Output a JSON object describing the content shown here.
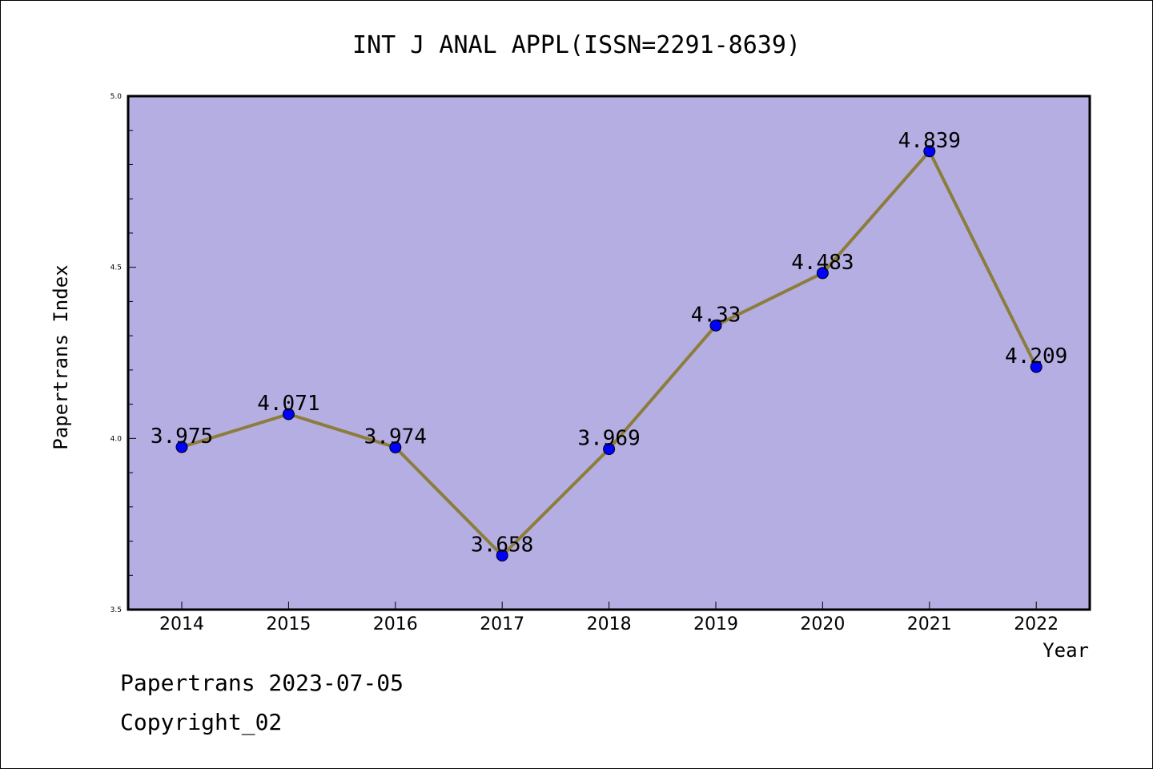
{
  "chart_data": {
    "type": "line",
    "title": "INT J ANAL APPL(ISSN=2291-8639)",
    "xlabel": "Year",
    "ylabel": "Papertrans Index",
    "categories": [
      "2014",
      "2015",
      "2016",
      "2017",
      "2018",
      "2019",
      "2020",
      "2021",
      "2022"
    ],
    "values": [
      3.975,
      4.071,
      3.974,
      3.658,
      3.969,
      4.33,
      4.483,
      4.839,
      4.209
    ],
    "data_labels": [
      "3.975",
      "4.071",
      "3.974",
      "3.658",
      "3.969",
      "4.33",
      "4.483",
      "4.839",
      "4.209"
    ],
    "ylim": [
      3.5,
      5.0
    ],
    "yticks": [
      "3.5",
      "4.0",
      "4.5",
      "5.0"
    ],
    "yminor_step": 0.1,
    "grid": false,
    "colors": {
      "plot_background": "#b5aee3",
      "line": "#8c7d3c",
      "marker": "#0000ff"
    }
  },
  "footer": {
    "date": "Papertrans 2023-07-05",
    "copyright": "Copyright_02"
  }
}
